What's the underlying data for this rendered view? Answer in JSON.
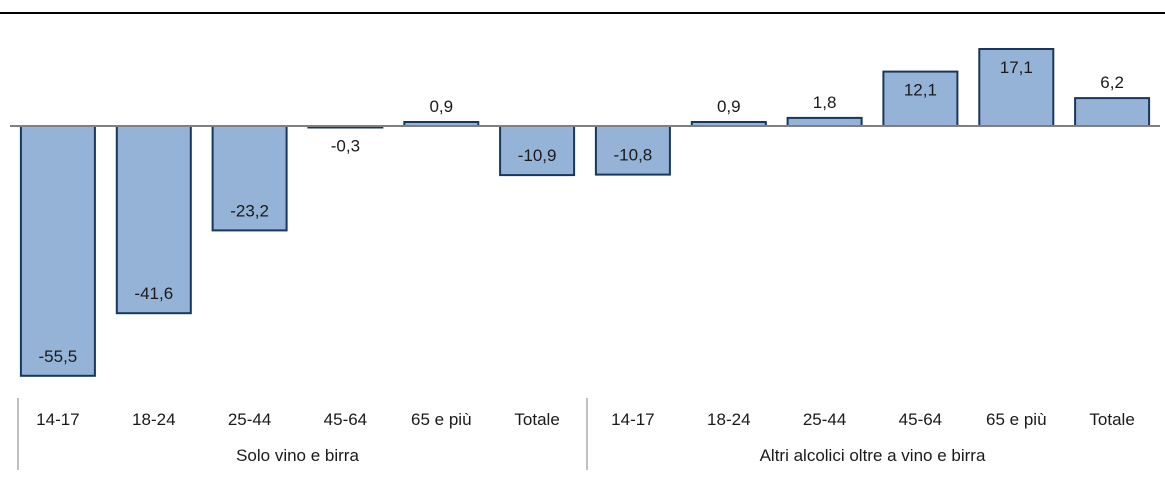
{
  "chart_data": {
    "type": "bar",
    "categories": [
      "14-17",
      "18-24",
      "25-44",
      "45-64",
      "65 e più",
      "Totale",
      "14-17",
      "18-24",
      "25-44",
      "45-64",
      "65 e più",
      "Totale"
    ],
    "groups": [
      {
        "label": "Solo vino e birra",
        "count": 6
      },
      {
        "label": "Altri alcolici oltre a vino e birra",
        "count": 6
      }
    ],
    "value_labels": [
      "-55,5",
      "-41,6",
      "-23,2",
      "-0,3",
      "0,9",
      "-10,9",
      "-10,8",
      "0,9",
      "1,8",
      "12,1",
      "17,1",
      "6,2"
    ],
    "values": [
      -55.5,
      -41.6,
      -23.2,
      -0.3,
      0.9,
      -10.9,
      -10.8,
      0.9,
      1.8,
      12.1,
      17.1,
      6.2
    ],
    "ylim": [
      -56.5,
      25.5
    ],
    "grid": false,
    "legend": "none",
    "colors": {
      "bar_fill": "#95b3d7",
      "bar_stroke": "#17375e",
      "axis": "#808080",
      "top_rule": "#000000"
    }
  }
}
